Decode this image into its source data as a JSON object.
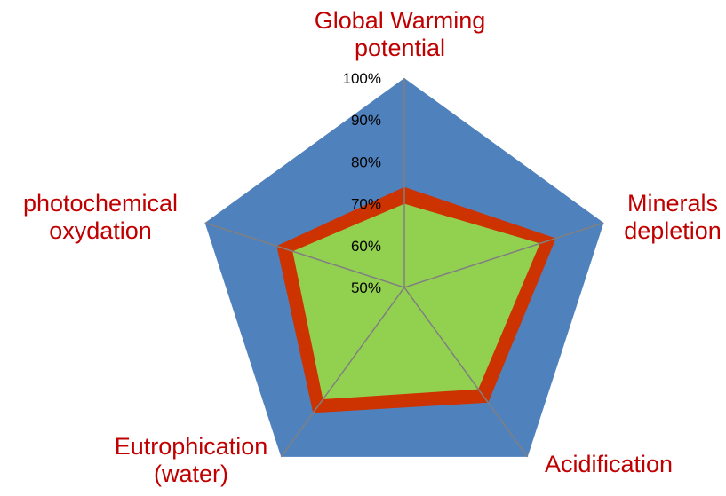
{
  "chart_data": {
    "type": "radar",
    "axes": [
      [
        "Global Warming",
        "potential"
      ],
      [
        "Minerals",
        "depletion"
      ],
      [
        "Acidification"
      ],
      [
        "Eutrophication",
        "(water)"
      ],
      [
        "photochemical",
        "oxydation"
      ]
    ],
    "rlim": [
      0.5,
      1.0
    ],
    "ticks": [
      "50%",
      "60%",
      "70%",
      "80%",
      "90%",
      "100%"
    ],
    "tick_values": [
      0.5,
      0.6,
      0.7,
      0.8,
      0.9,
      1.0
    ],
    "series": [
      {
        "values": [
          1.0,
          1.0,
          1.0,
          1.0,
          1.0
        ],
        "color": "#4f81bd"
      },
      {
        "values": [
          0.74,
          0.88,
          0.84,
          0.87,
          0.82
        ],
        "color": "#cc3300"
      },
      {
        "values": [
          0.7,
          0.84,
          0.8,
          0.83,
          0.78
        ],
        "color": "#92d050"
      }
    ],
    "axis_label_color": "#c00000",
    "spoke_color": "#808080",
    "grid": false,
    "legend": "none"
  }
}
